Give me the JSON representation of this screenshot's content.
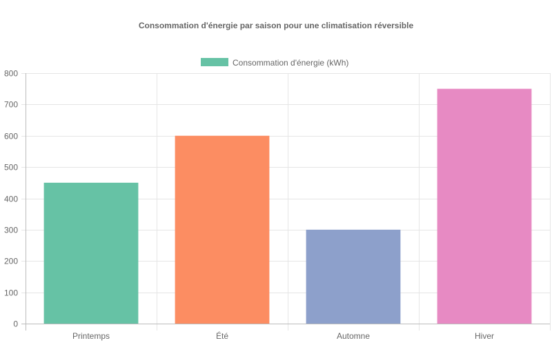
{
  "chart_data": {
    "type": "bar",
    "title": "Consommation d'énergie par saison pour une climatisation réversible",
    "categories": [
      "Printemps",
      "Été",
      "Automne",
      "Hiver"
    ],
    "series": [
      {
        "name": "Consommation d'énergie (kWh)",
        "values": [
          450,
          600,
          300,
          750
        ]
      }
    ],
    "bar_colors": [
      "#66c2a5",
      "#fc8d62",
      "#8da0cb",
      "#e78ac3"
    ],
    "legend_color": "#66c2a5",
    "ylim": [
      0,
      800
    ],
    "yticks": [
      0,
      100,
      200,
      300,
      400,
      500,
      600,
      700,
      800
    ],
    "grid": true,
    "legend_position": "top-center"
  }
}
